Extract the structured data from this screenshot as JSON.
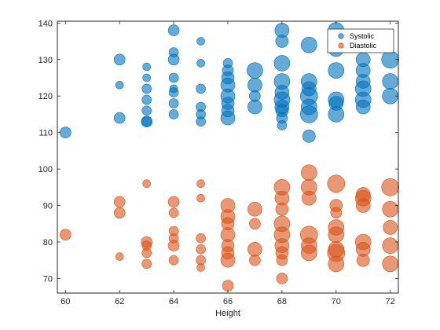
{
  "chart_data": {
    "type": "scatter",
    "title": "",
    "xlabel": "Height",
    "ylabel": "",
    "xlim": [
      59.7,
      72.3
    ],
    "ylim": [
      66,
      140.5
    ],
    "xticks": [
      60,
      62,
      64,
      66,
      68,
      70,
      72
    ],
    "yticks": [
      70,
      80,
      90,
      100,
      110,
      120,
      130,
      140
    ],
    "grid": false,
    "legend_placement": "top-right",
    "series": [
      {
        "name": "Systolic",
        "color": "#0072BD",
        "marker": "circle",
        "points": [
          [
            60,
            110,
            7
          ],
          [
            62,
            130,
            7
          ],
          [
            62,
            123,
            5
          ],
          [
            62,
            114,
            7
          ],
          [
            63,
            128,
            5
          ],
          [
            63,
            125,
            5
          ],
          [
            63,
            122,
            6
          ],
          [
            63,
            119,
            6
          ],
          [
            63,
            116,
            6
          ],
          [
            63,
            113,
            7
          ],
          [
            63,
            113,
            6
          ],
          [
            64,
            138,
            7
          ],
          [
            64,
            132,
            6
          ],
          [
            64,
            130,
            7
          ],
          [
            64,
            125,
            6
          ],
          [
            64,
            122,
            5
          ],
          [
            64,
            121,
            6
          ],
          [
            64,
            118,
            6
          ],
          [
            64,
            115,
            6
          ],
          [
            65,
            135,
            5
          ],
          [
            65,
            129,
            5
          ],
          [
            65,
            122,
            6
          ],
          [
            65,
            117,
            6
          ],
          [
            65,
            115,
            6
          ],
          [
            65,
            113,
            6
          ],
          [
            66,
            129,
            6
          ],
          [
            66,
            127,
            7
          ],
          [
            66,
            125,
            8
          ],
          [
            66,
            123,
            9
          ],
          [
            66,
            120,
            9
          ],
          [
            66,
            118,
            8
          ],
          [
            66,
            116,
            8
          ],
          [
            66,
            114,
            9
          ],
          [
            67,
            127,
            10
          ],
          [
            67,
            123,
            9
          ],
          [
            67,
            120,
            7
          ],
          [
            67,
            117,
            9
          ],
          [
            68,
            138,
            9
          ],
          [
            68,
            135,
            8
          ],
          [
            68,
            129,
            10
          ],
          [
            68,
            124,
            10
          ],
          [
            68,
            121,
            9
          ],
          [
            68,
            119,
            10
          ],
          [
            68,
            117,
            9
          ],
          [
            68,
            116,
            8
          ],
          [
            68,
            114,
            7
          ],
          [
            68,
            112,
            6
          ],
          [
            69,
            134,
            10
          ],
          [
            69,
            124,
            10
          ],
          [
            69,
            122,
            9
          ],
          [
            69,
            120,
            11
          ],
          [
            69,
            117,
            10
          ],
          [
            69,
            115,
            11
          ],
          [
            69,
            109,
            8
          ],
          [
            70,
            138,
            10
          ],
          [
            70,
            133,
            10
          ],
          [
            70,
            127,
            10
          ],
          [
            70,
            119,
            10
          ],
          [
            70,
            118,
            9
          ],
          [
            70,
            115,
            10
          ],
          [
            71,
            130,
            9
          ],
          [
            71,
            127,
            9
          ],
          [
            71,
            124,
            9
          ],
          [
            71,
            122,
            10
          ],
          [
            71,
            119,
            10
          ],
          [
            71,
            117,
            9
          ],
          [
            72,
            130,
            11
          ],
          [
            72,
            124,
            10
          ],
          [
            72,
            120,
            10
          ]
        ]
      },
      {
        "name": "Diastolic",
        "color": "#D95319",
        "marker": "circle",
        "points": [
          [
            60,
            82,
            7
          ],
          [
            62,
            91,
            7
          ],
          [
            62,
            88,
            7
          ],
          [
            62,
            76,
            5
          ],
          [
            63,
            96,
            5
          ],
          [
            63,
            80,
            7
          ],
          [
            63,
            79,
            6
          ],
          [
            63,
            77,
            6
          ],
          [
            63,
            74,
            6
          ],
          [
            64,
            91,
            7
          ],
          [
            64,
            88,
            6
          ],
          [
            64,
            83,
            6
          ],
          [
            64,
            81,
            6
          ],
          [
            64,
            79,
            7
          ],
          [
            64,
            75,
            6
          ],
          [
            65,
            96,
            5
          ],
          [
            65,
            92,
            5
          ],
          [
            65,
            81,
            6
          ],
          [
            65,
            78,
            6
          ],
          [
            65,
            75,
            6
          ],
          [
            65,
            73,
            5
          ],
          [
            66,
            90,
            9
          ],
          [
            66,
            87,
            9
          ],
          [
            66,
            85,
            8
          ],
          [
            66,
            82,
            9
          ],
          [
            66,
            79,
            8
          ],
          [
            66,
            77,
            8
          ],
          [
            66,
            75,
            9
          ],
          [
            66,
            68,
            7
          ],
          [
            67,
            89,
            9
          ],
          [
            67,
            85,
            7
          ],
          [
            67,
            78,
            9
          ],
          [
            67,
            75,
            7
          ],
          [
            68,
            95,
            10
          ],
          [
            68,
            92,
            9
          ],
          [
            68,
            89,
            8
          ],
          [
            68,
            85,
            10
          ],
          [
            68,
            82,
            10
          ],
          [
            68,
            79,
            9
          ],
          [
            68,
            77,
            8
          ],
          [
            68,
            75,
            7
          ],
          [
            68,
            70,
            7
          ],
          [
            69,
            99,
            10
          ],
          [
            69,
            95,
            10
          ],
          [
            69,
            92,
            9
          ],
          [
            69,
            82,
            11
          ],
          [
            69,
            79,
            10
          ],
          [
            69,
            77,
            10
          ],
          [
            70,
            96,
            11
          ],
          [
            70,
            90,
            8
          ],
          [
            70,
            88,
            7
          ],
          [
            70,
            84,
            10
          ],
          [
            70,
            82,
            10
          ],
          [
            70,
            78,
            10
          ],
          [
            70,
            77,
            11
          ],
          [
            70,
            74,
            10
          ],
          [
            71,
            93,
            9
          ],
          [
            71,
            92,
            10
          ],
          [
            71,
            90,
            9
          ],
          [
            71,
            80,
            10
          ],
          [
            71,
            78,
            9
          ],
          [
            71,
            75,
            8
          ],
          [
            72,
            95,
            11
          ],
          [
            72,
            89,
            10
          ],
          [
            72,
            84,
            9
          ],
          [
            72,
            79,
            10
          ],
          [
            72,
            74,
            10
          ]
        ]
      }
    ]
  }
}
